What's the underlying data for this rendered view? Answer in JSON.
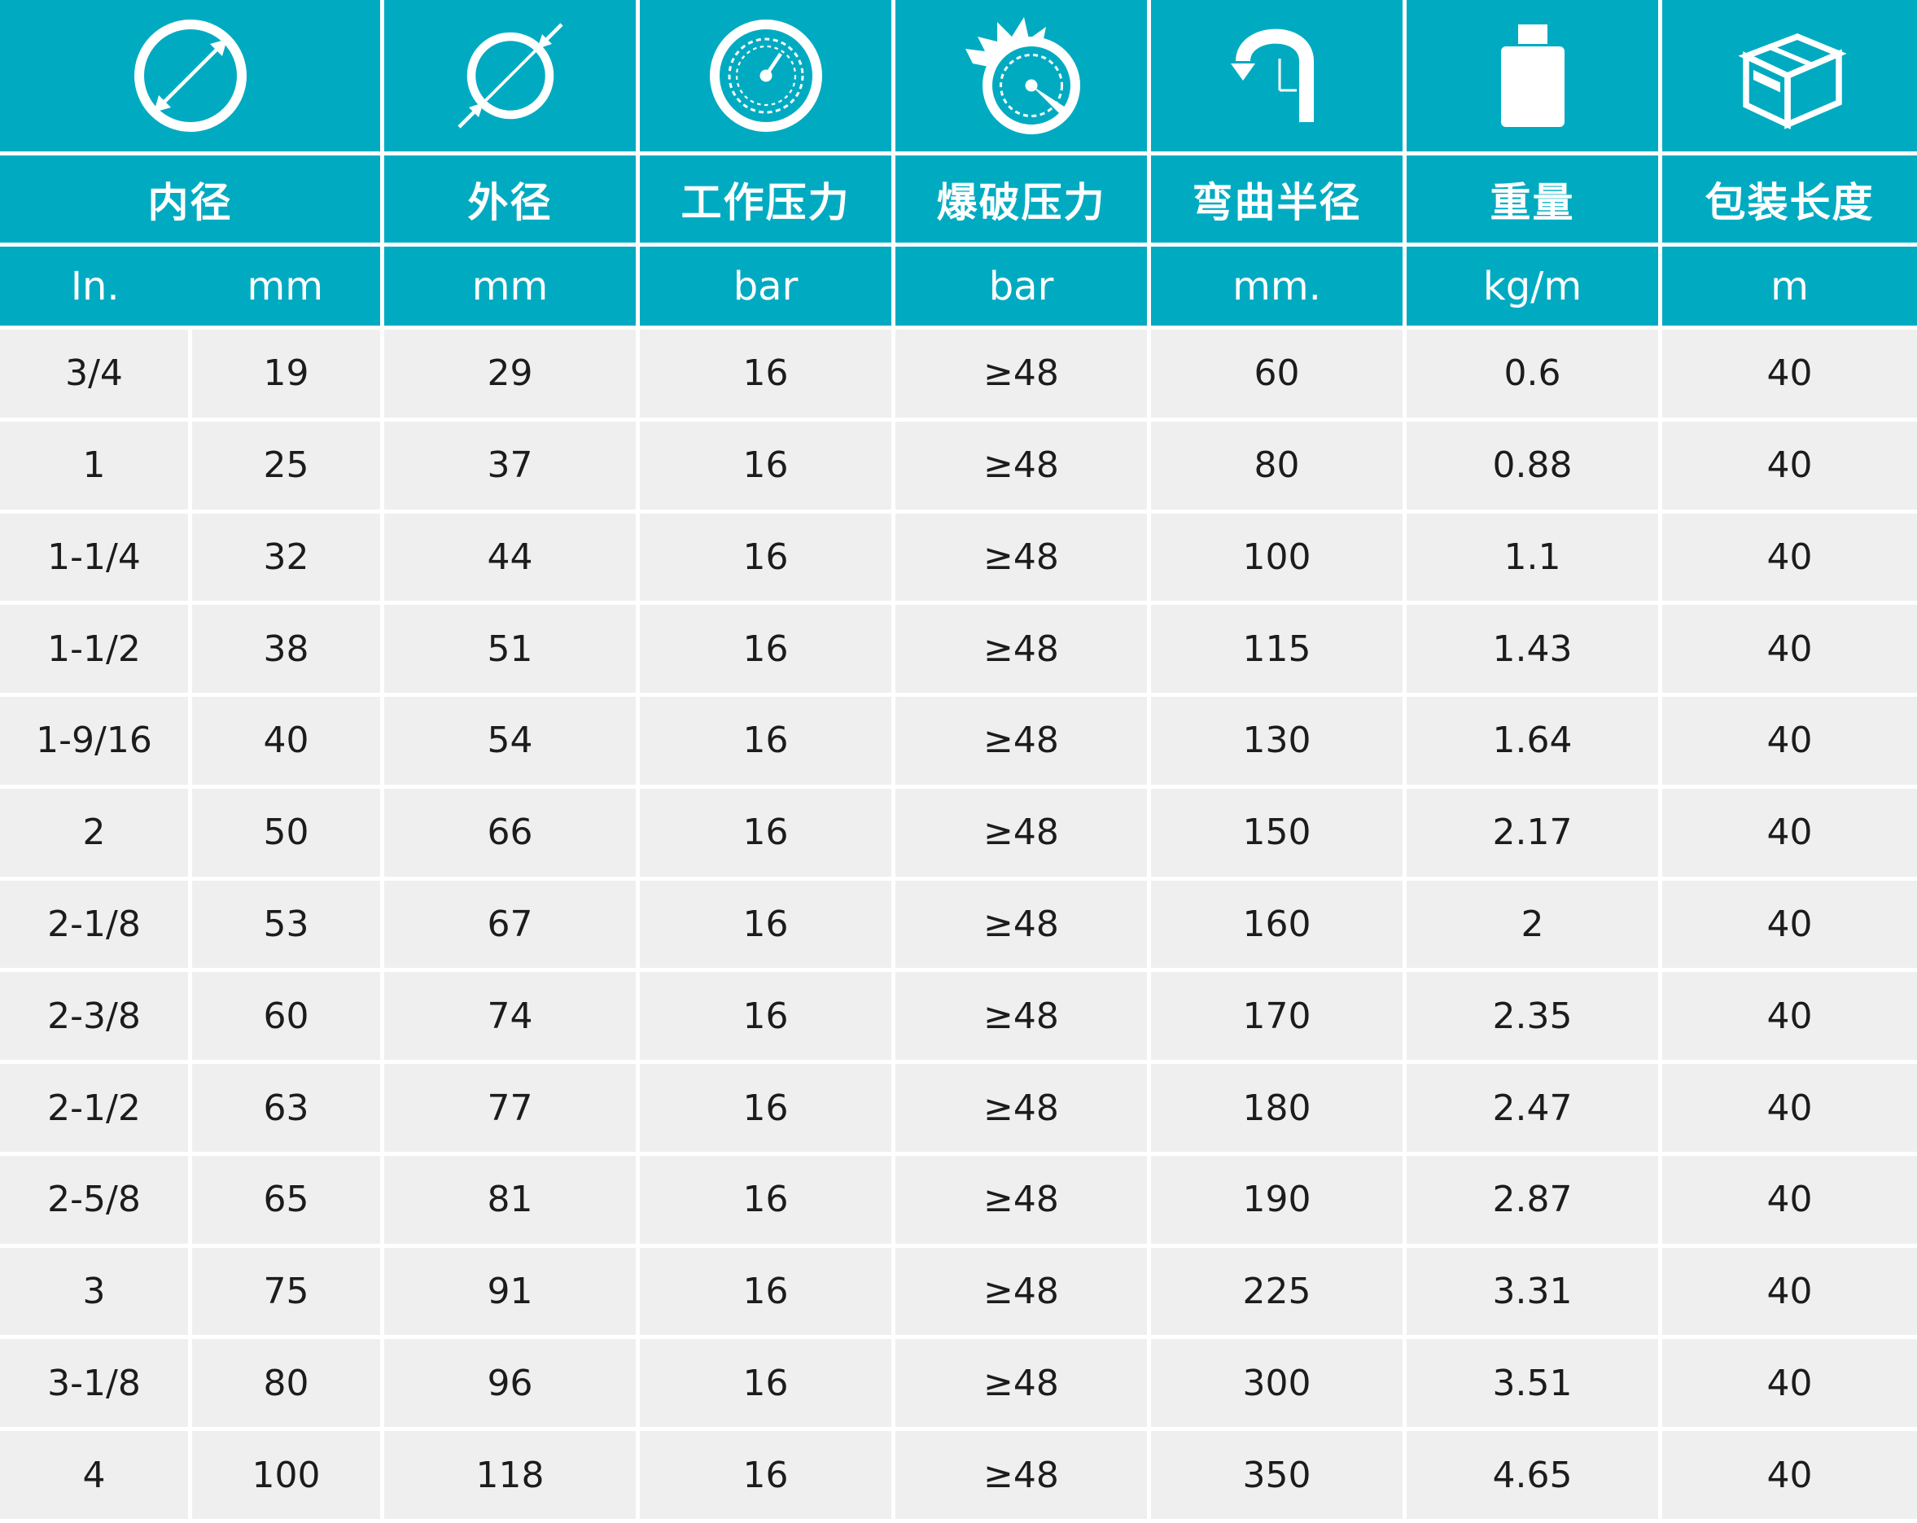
{
  "columns": [
    {
      "icon": "inner-diameter-icon",
      "title": "内径",
      "units": [
        "In.",
        "mm"
      ]
    },
    {
      "icon": "outer-diameter-icon",
      "title": "外径",
      "units": [
        "mm"
      ]
    },
    {
      "icon": "pressure-gauge-icon",
      "title": "工作压力",
      "units": [
        "bar"
      ]
    },
    {
      "icon": "burst-gauge-icon",
      "title": "爆破压力",
      "units": [
        "bar"
      ]
    },
    {
      "icon": "bend-radius-icon",
      "title": "弯曲半径",
      "units": [
        "mm."
      ]
    },
    {
      "icon": "weight-icon",
      "title": "重量",
      "units": [
        "kg/m"
      ]
    },
    {
      "icon": "package-box-icon",
      "title": "包装长度",
      "units": [
        "m"
      ]
    }
  ],
  "colors": {
    "header_bg": "#00abc1",
    "row_bg": "#efefef",
    "divider": "#ffffff",
    "text": "#1c1c1c"
  },
  "rows": [
    [
      "3/4",
      "19",
      "29",
      "16",
      "≥48",
      "60",
      "0.6",
      "40"
    ],
    [
      "1",
      "25",
      "37",
      "16",
      "≥48",
      "80",
      "0.88",
      "40"
    ],
    [
      "1-1/4",
      "32",
      "44",
      "16",
      "≥48",
      "100",
      "1.1",
      "40"
    ],
    [
      "1-1/2",
      "38",
      "51",
      "16",
      "≥48",
      "115",
      "1.43",
      "40"
    ],
    [
      "1-9/16",
      "40",
      "54",
      "16",
      "≥48",
      "130",
      "1.64",
      "40"
    ],
    [
      "2",
      "50",
      "66",
      "16",
      "≥48",
      "150",
      "2.17",
      "40"
    ],
    [
      "2-1/8",
      "53",
      "67",
      "16",
      "≥48",
      "160",
      "2",
      "40"
    ],
    [
      "2-3/8",
      "60",
      "74",
      "16",
      "≥48",
      "170",
      "2.35",
      "40"
    ],
    [
      "2-1/2",
      "63",
      "77",
      "16",
      "≥48",
      "180",
      "2.47",
      "40"
    ],
    [
      "2-5/8",
      "65",
      "81",
      "16",
      "≥48",
      "190",
      "2.87",
      "40"
    ],
    [
      "3",
      "75",
      "91",
      "16",
      "≥48",
      "225",
      "3.31",
      "40"
    ],
    [
      "3-1/8",
      "80",
      "96",
      "16",
      "≥48",
      "300",
      "3.51",
      "40"
    ],
    [
      "4",
      "100",
      "118",
      "16",
      "≥48",
      "350",
      "4.65",
      "40"
    ]
  ]
}
